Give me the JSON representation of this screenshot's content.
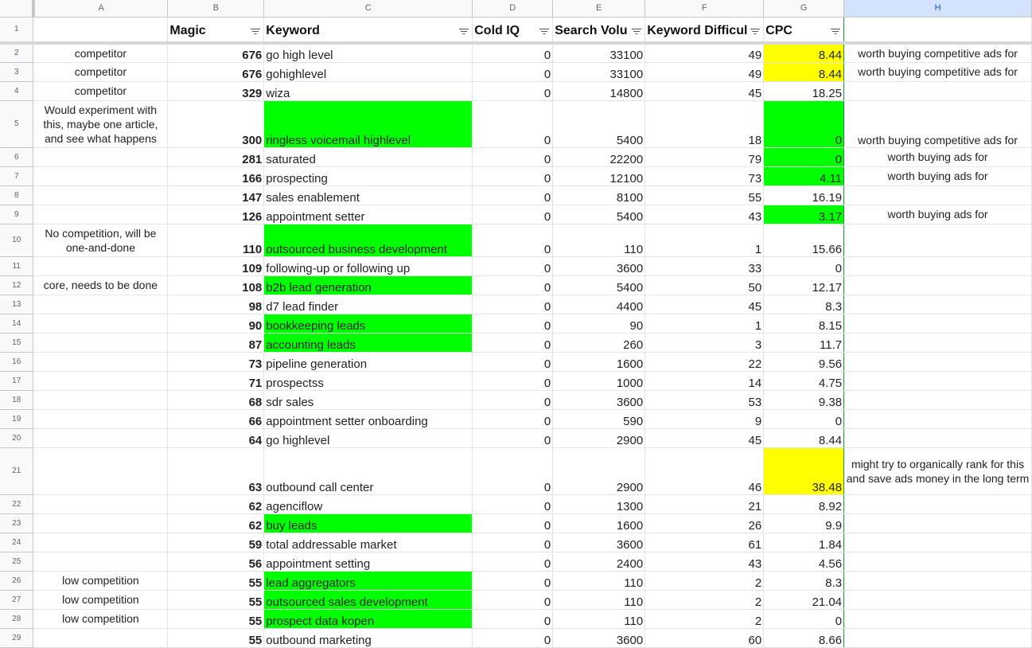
{
  "columns": [
    "A",
    "B",
    "C",
    "D",
    "E",
    "F",
    "G",
    "H"
  ],
  "header_row": {
    "num": "1",
    "magic": "Magic",
    "keyword": "Keyword",
    "cold_iq": "Cold IQ",
    "search_volume": "Search Volu",
    "keyword_difficulty": "Keyword Difficul",
    "cpc": "CPC"
  },
  "rows": [
    {
      "num": "2",
      "note": "competitor",
      "magic": "676",
      "keyword": "go high level",
      "cold": "0",
      "volume": "33100",
      "difficulty": "49",
      "cpc": "8.44",
      "comment": "worth buying competitive ads for",
      "kw_color": "",
      "cpc_color": "yellow"
    },
    {
      "num": "3",
      "note": "competitor",
      "magic": "676",
      "keyword": "gohighlevel",
      "cold": "0",
      "volume": "33100",
      "difficulty": "49",
      "cpc": "8.44",
      "comment": "worth buying competitive ads for",
      "kw_color": "",
      "cpc_color": "yellow"
    },
    {
      "num": "4",
      "note": "competitor",
      "magic": "329",
      "keyword": "wiza",
      "cold": "0",
      "volume": "14800",
      "difficulty": "45",
      "cpc": "18.25",
      "comment": "",
      "kw_color": "",
      "cpc_color": ""
    },
    {
      "num": "5",
      "note": "Would experiment with this, maybe one article, and see what happens",
      "magic": "300",
      "keyword": "ringless voicemail highlevel",
      "cold": "0",
      "volume": "5400",
      "difficulty": "18",
      "cpc": "0",
      "comment": "worth buying competitive ads for",
      "kw_color": "green",
      "cpc_color": "green"
    },
    {
      "num": "6",
      "note": "",
      "magic": "281",
      "keyword": "saturated",
      "cold": "0",
      "volume": "22200",
      "difficulty": "79",
      "cpc": "0",
      "comment": "worth buying ads for",
      "kw_color": "",
      "cpc_color": "green"
    },
    {
      "num": "7",
      "note": "",
      "magic": "166",
      "keyword": "prospecting",
      "cold": "0",
      "volume": "12100",
      "difficulty": "73",
      "cpc": "4.11",
      "comment": "worth buying ads for",
      "kw_color": "",
      "cpc_color": "green"
    },
    {
      "num": "8",
      "note": "",
      "magic": "147",
      "keyword": "sales enablement",
      "cold": "0",
      "volume": "8100",
      "difficulty": "55",
      "cpc": "16.19",
      "comment": "",
      "kw_color": "",
      "cpc_color": ""
    },
    {
      "num": "9",
      "note": "",
      "magic": "126",
      "keyword": "appointment setter",
      "cold": "0",
      "volume": "5400",
      "difficulty": "43",
      "cpc": "3.17",
      "comment": "worth buying ads for",
      "kw_color": "",
      "cpc_color": "green"
    },
    {
      "num": "10",
      "note": "No competition, will be one-and-done",
      "magic": "110",
      "keyword": "outsourced business development",
      "cold": "0",
      "volume": "110",
      "difficulty": "1",
      "cpc": "15.66",
      "comment": "",
      "kw_color": "green",
      "cpc_color": ""
    },
    {
      "num": "11",
      "note": "",
      "magic": "109",
      "keyword": "following-up or following up",
      "cold": "0",
      "volume": "3600",
      "difficulty": "33",
      "cpc": "0",
      "comment": "",
      "kw_color": "",
      "cpc_color": ""
    },
    {
      "num": "12",
      "note": "core, needs to be done",
      "magic": "108",
      "keyword": "b2b lead generation",
      "cold": "0",
      "volume": "5400",
      "difficulty": "50",
      "cpc": "12.17",
      "comment": "",
      "kw_color": "green",
      "cpc_color": ""
    },
    {
      "num": "13",
      "note": "",
      "magic": "98",
      "keyword": "d7 lead finder",
      "cold": "0",
      "volume": "4400",
      "difficulty": "45",
      "cpc": "8.3",
      "comment": "",
      "kw_color": "",
      "cpc_color": ""
    },
    {
      "num": "14",
      "note": "",
      "magic": "90",
      "keyword": "bookkeeping leads",
      "cold": "0",
      "volume": "90",
      "difficulty": "1",
      "cpc": "8.15",
      "comment": "",
      "kw_color": "green",
      "cpc_color": ""
    },
    {
      "num": "15",
      "note": "",
      "magic": "87",
      "keyword": "accounting leads",
      "cold": "0",
      "volume": "260",
      "difficulty": "3",
      "cpc": "11.7",
      "comment": "",
      "kw_color": "green",
      "cpc_color": ""
    },
    {
      "num": "16",
      "note": "",
      "magic": "73",
      "keyword": "pipeline generation",
      "cold": "0",
      "volume": "1600",
      "difficulty": "22",
      "cpc": "9.56",
      "comment": "",
      "kw_color": "",
      "cpc_color": ""
    },
    {
      "num": "17",
      "note": "",
      "magic": "71",
      "keyword": "prospectss",
      "cold": "0",
      "volume": "1000",
      "difficulty": "14",
      "cpc": "4.75",
      "comment": "",
      "kw_color": "",
      "cpc_color": ""
    },
    {
      "num": "18",
      "note": "",
      "magic": "68",
      "keyword": "sdr sales",
      "cold": "0",
      "volume": "3600",
      "difficulty": "53",
      "cpc": "9.38",
      "comment": "",
      "kw_color": "",
      "cpc_color": ""
    },
    {
      "num": "19",
      "note": "",
      "magic": "66",
      "keyword": "appointment setter onboarding",
      "cold": "0",
      "volume": "590",
      "difficulty": "9",
      "cpc": "0",
      "comment": "",
      "kw_color": "",
      "cpc_color": ""
    },
    {
      "num": "20",
      "note": "",
      "magic": "64",
      "keyword": "go highlevel",
      "cold": "0",
      "volume": "2900",
      "difficulty": "45",
      "cpc": "8.44",
      "comment": "",
      "kw_color": "",
      "cpc_color": ""
    },
    {
      "num": "21",
      "note": "",
      "magic": "63",
      "keyword": "outbound call center",
      "cold": "0",
      "volume": "2900",
      "difficulty": "46",
      "cpc": "38.48",
      "comment": "might try to organically rank for this and save ads money in the long term",
      "kw_color": "",
      "cpc_color": "yellow"
    },
    {
      "num": "22",
      "note": "",
      "magic": "62",
      "keyword": "agenciflow",
      "cold": "0",
      "volume": "1300",
      "difficulty": "21",
      "cpc": "8.92",
      "comment": "",
      "kw_color": "",
      "cpc_color": ""
    },
    {
      "num": "23",
      "note": "",
      "magic": "62",
      "keyword": "buy leads",
      "cold": "0",
      "volume": "1600",
      "difficulty": "26",
      "cpc": "9.9",
      "comment": "",
      "kw_color": "green",
      "cpc_color": ""
    },
    {
      "num": "24",
      "note": "",
      "magic": "59",
      "keyword": "total addressable market",
      "cold": "0",
      "volume": "3600",
      "difficulty": "61",
      "cpc": "1.84",
      "comment": "",
      "kw_color": "",
      "cpc_color": ""
    },
    {
      "num": "25",
      "note": "",
      "magic": "56",
      "keyword": "appointment setting",
      "cold": "0",
      "volume": "2400",
      "difficulty": "43",
      "cpc": "4.56",
      "comment": "",
      "kw_color": "",
      "cpc_color": ""
    },
    {
      "num": "26",
      "note": "low competition",
      "magic": "55",
      "keyword": "lead aggregators",
      "cold": "0",
      "volume": "110",
      "difficulty": "2",
      "cpc": "8.3",
      "comment": "",
      "kw_color": "green",
      "cpc_color": ""
    },
    {
      "num": "27",
      "note": "low competition",
      "magic": "55",
      "keyword": "outsourced sales development",
      "cold": "0",
      "volume": "110",
      "difficulty": "2",
      "cpc": "21.04",
      "comment": "",
      "kw_color": "green",
      "cpc_color": ""
    },
    {
      "num": "28",
      "note": "low competition",
      "magic": "55",
      "keyword": "prospect data kopen",
      "cold": "0",
      "volume": "110",
      "difficulty": "2",
      "cpc": "0",
      "comment": "",
      "kw_color": "green",
      "cpc_color": ""
    },
    {
      "num": "29",
      "note": "",
      "magic": "55",
      "keyword": "outbound marketing",
      "cold": "0",
      "volume": "3600",
      "difficulty": "60",
      "cpc": "8.66",
      "comment": "",
      "kw_color": "",
      "cpc_color": ""
    }
  ]
}
